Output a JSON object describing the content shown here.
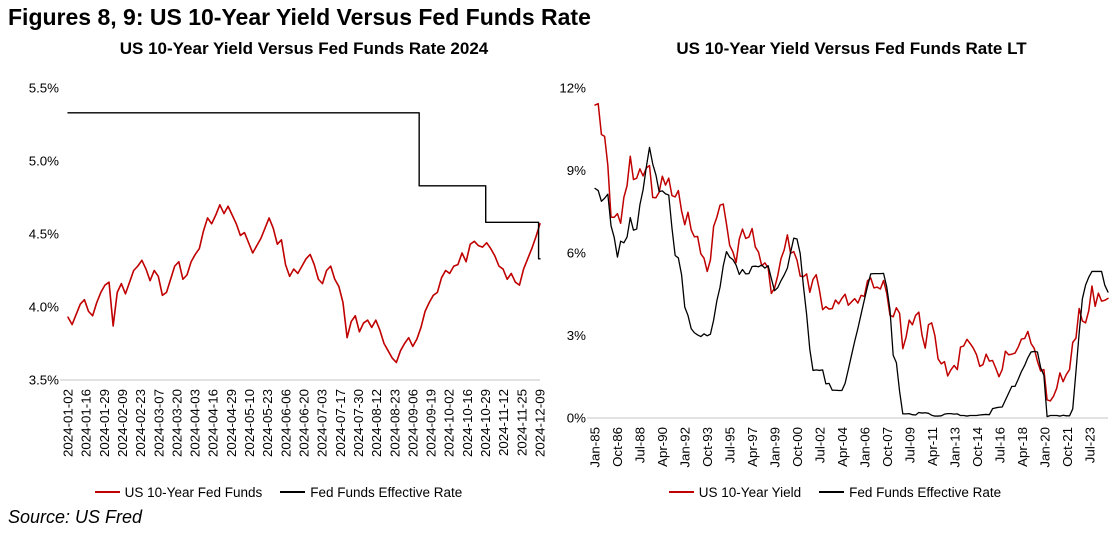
{
  "figure_title": "Figures 8, 9: US 10-Year Yield Versus Fed Funds Rate",
  "source_note": "Source: US Fred",
  "colors": {
    "red": "#c00000",
    "black": "#000000",
    "axis_line": "#d9d9d9",
    "text": "#000000"
  },
  "chart_data": [
    {
      "type": "line",
      "title": "US 10-Year Yield Versus Fed Funds Rate 2024",
      "ylabel": "",
      "xlabel": "",
      "ylim": [
        3.5,
        5.5
      ],
      "xlim": [
        0,
        1
      ],
      "grid": false,
      "legend_position": "bottom",
      "y_ticks": [
        {
          "value": 5.5,
          "label": "5.5%"
        },
        {
          "value": 5.0,
          "label": "5.0%"
        },
        {
          "value": 4.5,
          "label": "4.5%"
        },
        {
          "value": 4.0,
          "label": "4.0%"
        },
        {
          "value": 3.5,
          "label": "3.5%"
        }
      ],
      "x_tick_labels": [
        "2024-01-02",
        "2024-01-16",
        "2024-01-29",
        "2024-02-09",
        "2024-02-23",
        "2024-03-07",
        "2024-03-20",
        "2024-04-03",
        "2024-04-16",
        "2024-04-29",
        "2024-05-10",
        "2024-05-23",
        "2024-06-06",
        "2024-06-20",
        "2024-07-03",
        "2024-07-17",
        "2024-07-30",
        "2024-08-12",
        "2024-08-23",
        "2024-09-06",
        "2024-09-19",
        "2024-10-02",
        "2024-10-16",
        "2024-10-29",
        "2024-11-12",
        "2024-11-25",
        "2024-12-09"
      ],
      "series": [
        {
          "name": "US 10-Year Fed Funds",
          "color_key": "red",
          "stroke_width": 1.6,
          "y": [
            3.93,
            3.88,
            3.95,
            4.02,
            4.05,
            3.97,
            3.94,
            4.03,
            4.1,
            4.15,
            4.17,
            3.87,
            4.1,
            4.16,
            4.09,
            4.17,
            4.25,
            4.28,
            4.32,
            4.26,
            4.18,
            4.25,
            4.21,
            4.08,
            4.1,
            4.19,
            4.28,
            4.31,
            4.19,
            4.22,
            4.31,
            4.36,
            4.4,
            4.52,
            4.61,
            4.57,
            4.63,
            4.7,
            4.64,
            4.69,
            4.63,
            4.57,
            4.49,
            4.51,
            4.44,
            4.37,
            4.42,
            4.47,
            4.54,
            4.61,
            4.54,
            4.43,
            4.46,
            4.29,
            4.21,
            4.26,
            4.23,
            4.28,
            4.33,
            4.36,
            4.29,
            4.19,
            4.16,
            4.25,
            4.28,
            4.19,
            4.14,
            4.03,
            3.79,
            3.9,
            3.94,
            3.83,
            3.89,
            3.91,
            3.86,
            3.91,
            3.84,
            3.75,
            3.7,
            3.65,
            3.62,
            3.7,
            3.75,
            3.79,
            3.73,
            3.78,
            3.86,
            3.97,
            4.03,
            4.08,
            4.1,
            4.2,
            4.25,
            4.23,
            4.28,
            4.29,
            4.37,
            4.31,
            4.43,
            4.45,
            4.42,
            4.41,
            4.44,
            4.4,
            4.35,
            4.28,
            4.26,
            4.19,
            4.23,
            4.17,
            4.15,
            4.26,
            4.33,
            4.4,
            4.48,
            4.57
          ]
        },
        {
          "name": "Fed Funds Effective Rate",
          "color_key": "black",
          "stroke_width": 1.4,
          "x": [
            0,
            0.744,
            0.744,
            0.885,
            0.885,
            0.997,
            0.997,
            1.0
          ],
          "y": [
            5.33,
            5.33,
            4.83,
            4.83,
            4.58,
            4.58,
            4.33,
            4.33
          ]
        }
      ]
    },
    {
      "type": "line",
      "title": "US 10-Year Yield Versus Fed Funds Rate LT",
      "ylabel": "",
      "xlabel": "",
      "ylim": [
        0,
        12
      ],
      "xlim": [
        0,
        479
      ],
      "grid": false,
      "legend_position": "bottom",
      "y_ticks": [
        {
          "value": 12,
          "label": "12%"
        },
        {
          "value": 9,
          "label": "9%"
        },
        {
          "value": 6,
          "label": "6%"
        },
        {
          "value": 3,
          "label": "3%"
        },
        {
          "value": 0,
          "label": "0%"
        }
      ],
      "x_tick_labels": [
        "Jan-85",
        "Oct-86",
        "Jul-88",
        "Apr-90",
        "Jan-92",
        "Oct-93",
        "Jul-95",
        "Apr-97",
        "Jan-99",
        "Oct-00",
        "Jul-02",
        "Apr-04",
        "Jan-06",
        "Oct-07",
        "Jul-09",
        "Apr-11",
        "Jan-13",
        "Oct-14",
        "Jul-16",
        "Apr-18",
        "Jan-20",
        "Oct-21",
        "Jul-23"
      ],
      "x_tick_values": [
        0,
        21,
        42,
        63,
        84,
        105,
        126,
        147,
        168,
        189,
        210,
        231,
        252,
        273,
        294,
        315,
        336,
        357,
        378,
        399,
        420,
        441,
        462
      ],
      "series": [
        {
          "name": "US 10-Year Yield",
          "color_key": "red",
          "stroke_width": 1.5,
          "y": [
            11.38,
            11.43,
            10.31,
            10.24,
            9.19,
            7.3,
            7.3,
            7.43,
            7.08,
            8.02,
            8.45,
            9.52,
            8.67,
            8.72,
            9.06,
            8.8,
            9.09,
            9.18,
            8.02,
            8.01,
            8.21,
            8.79,
            8.47,
            8.72,
            8.09,
            8.04,
            8.27,
            7.53,
            7.03,
            7.48,
            6.84,
            6.59,
            6.6,
            5.97,
            5.81,
            5.33,
            5.75,
            6.97,
            7.3,
            7.74,
            7.78,
            7.06,
            6.28,
            6.04,
            5.65,
            6.51,
            6.87,
            6.53,
            6.58,
            6.89,
            6.22,
            6.03,
            5.54,
            5.64,
            5.46,
            4.53,
            4.72,
            5.18,
            5.79,
            6.11,
            6.66,
            5.99,
            6.05,
            5.74,
            5.16,
            5.14,
            5.24,
            4.57,
            5.04,
            5.21,
            4.65,
            3.94,
            4.05,
            3.96,
            3.98,
            4.29,
            4.15,
            4.35,
            4.5,
            4.1,
            4.22,
            4.34,
            4.18,
            4.46,
            4.42,
            4.99,
            5.09,
            4.73,
            4.76,
            4.69,
            5.0,
            4.53,
            3.74,
            3.68,
            4.01,
            3.81,
            2.52,
            2.93,
            3.56,
            3.39,
            3.73,
            3.85,
            3.01,
            2.54,
            3.39,
            3.46,
            3.0,
            2.15,
            1.97,
            2.05,
            1.53,
            1.75,
            1.91,
            1.76,
            2.58,
            2.62,
            2.86,
            2.71,
            2.54,
            2.3,
            1.88,
            1.94,
            2.32,
            2.07,
            2.09,
            1.81,
            1.5,
            1.76,
            2.43,
            2.3,
            2.32,
            2.36,
            2.58,
            2.87,
            2.89,
            3.15,
            2.71,
            2.53,
            2.06,
            1.71,
            1.76,
            0.66,
            0.62,
            0.79,
            1.08,
            1.64,
            1.32,
            1.58,
            1.76,
            2.75,
            2.9,
            3.98,
            3.53,
            3.46,
            3.9,
            4.8,
            4.06,
            4.54,
            4.25,
            4.28,
            4.35
          ]
        },
        {
          "name": "Fed Funds Effective Rate",
          "color_key": "black",
          "stroke_width": 1.3,
          "y": [
            8.35,
            8.27,
            7.88,
            7.99,
            8.14,
            6.99,
            6.56,
            5.85,
            6.43,
            6.37,
            6.58,
            7.29,
            6.83,
            6.87,
            7.75,
            8.3,
            9.12,
            9.84,
            9.24,
            8.84,
            8.23,
            8.26,
            8.15,
            8.11,
            6.91,
            5.91,
            5.82,
            5.21,
            4.03,
            3.73,
            3.25,
            3.1,
            3.02,
            2.96,
            3.06,
            2.99,
            3.05,
            3.56,
            4.26,
            4.76,
            5.53,
            6.05,
            5.85,
            5.76,
            5.56,
            5.22,
            5.4,
            5.24,
            5.25,
            5.51,
            5.52,
            5.5,
            5.56,
            5.45,
            5.54,
            5.07,
            4.63,
            4.74,
            4.99,
            5.2,
            5.45,
            6.02,
            6.54,
            6.51,
            5.98,
            4.8,
            3.77,
            2.49,
            1.73,
            1.75,
            1.73,
            1.75,
            1.24,
            1.26,
            1.01,
            1.01,
            1.0,
            1.0,
            1.26,
            1.76,
            2.28,
            2.79,
            3.26,
            3.78,
            4.29,
            4.79,
            5.24,
            5.25,
            5.25,
            5.25,
            5.26,
            4.76,
            3.94,
            2.28,
            2.01,
            0.97,
            0.15,
            0.15,
            0.16,
            0.12,
            0.11,
            0.2,
            0.18,
            0.19,
            0.17,
            0.1,
            0.07,
            0.07,
            0.08,
            0.14,
            0.16,
            0.16,
            0.14,
            0.15,
            0.09,
            0.09,
            0.07,
            0.09,
            0.09,
            0.09,
            0.11,
            0.12,
            0.13,
            0.12,
            0.34,
            0.37,
            0.39,
            0.4,
            0.65,
            0.9,
            1.15,
            1.15,
            1.41,
            1.69,
            1.91,
            2.19,
            2.4,
            2.42,
            2.4,
            1.83,
            1.55,
            0.05,
            0.09,
            0.09,
            0.09,
            0.07,
            0.1,
            0.08,
            0.08,
            0.33,
            1.68,
            3.08,
            4.33,
            4.83,
            5.12,
            5.33,
            5.33,
            5.33,
            5.33,
            4.83,
            4.58
          ]
        }
      ]
    }
  ]
}
